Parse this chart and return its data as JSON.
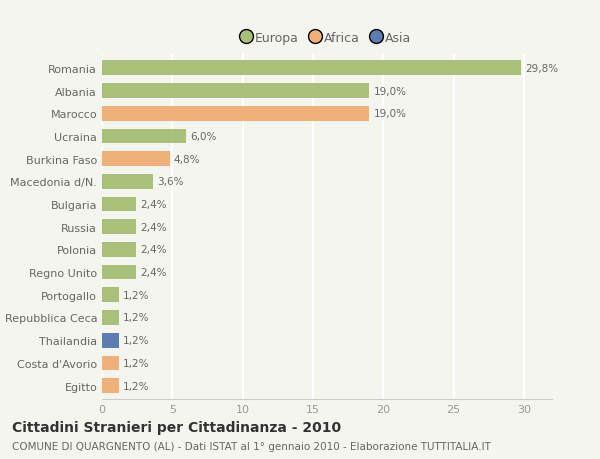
{
  "categories": [
    "Romania",
    "Albania",
    "Marocco",
    "Ucraina",
    "Burkina Faso",
    "Macedonia d/N.",
    "Bulgaria",
    "Russia",
    "Polonia",
    "Regno Unito",
    "Portogallo",
    "Repubblica Ceca",
    "Thailandia",
    "Costa d'Avorio",
    "Egitto"
  ],
  "values": [
    29.8,
    19.0,
    19.0,
    6.0,
    4.8,
    3.6,
    2.4,
    2.4,
    2.4,
    2.4,
    1.2,
    1.2,
    1.2,
    1.2,
    1.2
  ],
  "labels": [
    "29,8%",
    "19,0%",
    "19,0%",
    "6,0%",
    "4,8%",
    "3,6%",
    "2,4%",
    "2,4%",
    "2,4%",
    "2,4%",
    "1,2%",
    "1,2%",
    "1,2%",
    "1,2%",
    "1,2%"
  ],
  "continents": [
    "Europa",
    "Europa",
    "Africa",
    "Europa",
    "Africa",
    "Europa",
    "Europa",
    "Europa",
    "Europa",
    "Europa",
    "Europa",
    "Europa",
    "Asia",
    "Africa",
    "Africa"
  ],
  "colors": {
    "Europa": "#a8c07a",
    "Africa": "#f0b07a",
    "Asia": "#5b7db1"
  },
  "legend": [
    "Europa",
    "Africa",
    "Asia"
  ],
  "legend_colors": [
    "#a8c07a",
    "#f0b07a",
    "#5b7db1"
  ],
  "xlim": [
    0,
    32
  ],
  "xticks": [
    0,
    5,
    10,
    15,
    20,
    25,
    30
  ],
  "title": "Cittadini Stranieri per Cittadinanza - 2010",
  "subtitle": "COMUNE DI QUARGNENTO (AL) - Dati ISTAT al 1° gennaio 2010 - Elaborazione TUTTITALIA.IT",
  "background_color": "#f5f5f0",
  "grid_color": "#ffffff",
  "bar_height": 0.65,
  "title_fontsize": 10,
  "subtitle_fontsize": 7.5,
  "label_fontsize": 7.5,
  "tick_fontsize": 8,
  "legend_fontsize": 9
}
